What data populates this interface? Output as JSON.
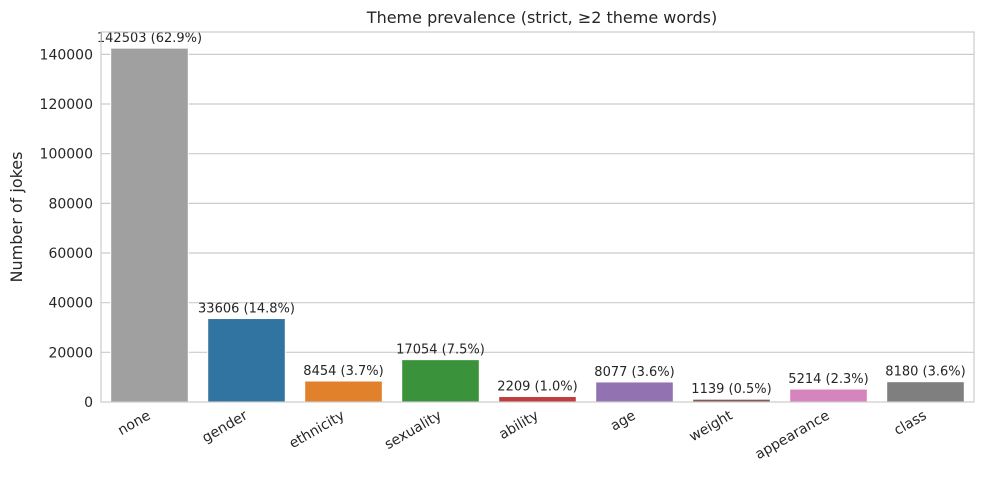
{
  "chart_data": {
    "type": "bar",
    "title": "Theme prevalence (strict, ≥2 theme words)",
    "xlabel": "",
    "ylabel": "Number of jokes",
    "ylim": [
      0,
      149000
    ],
    "yticks": [
      0,
      20000,
      40000,
      60000,
      80000,
      100000,
      120000,
      140000
    ],
    "grid": true,
    "categories": [
      "none",
      "gender",
      "ethnicity",
      "sexuality",
      "ability",
      "age",
      "weight",
      "appearance",
      "class"
    ],
    "values": [
      142503,
      33606,
      8454,
      17054,
      2209,
      8077,
      1139,
      5214,
      8180
    ],
    "data_labels": [
      "142503 (62.9%)",
      "33606 (14.8%)",
      "8454 (3.7%)",
      "17054 (7.5%)",
      "2209 (1.0%)",
      "8077 (3.6%)",
      "1139 (0.5%)",
      "5214 (2.3%)",
      "8180 (3.6%)"
    ],
    "colors": [
      "#a0a0a0",
      "#3274a1",
      "#e1812c",
      "#3a923a",
      "#c03d3e",
      "#9372b2",
      "#845b53",
      "#d684bd",
      "#7f7f7f"
    ]
  }
}
